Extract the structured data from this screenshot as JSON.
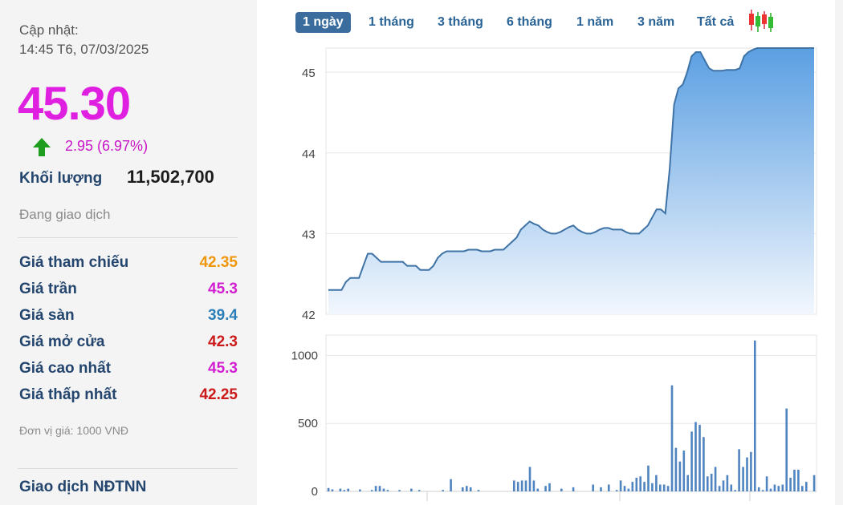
{
  "summary": {
    "update_label": "Cập nhật:",
    "update_time": "14:45 T6, 07/03/2025",
    "price": "45.30",
    "change": "2.95 (6.97%)",
    "volume_label": "Khối lượng",
    "volume_value": "11,502,700",
    "status": "Đang giao dịch"
  },
  "stats": [
    {
      "label": "Giá tham chiếu",
      "value": "42.35",
      "color": "#f0960a"
    },
    {
      "label": "Giá trần",
      "value": "45.3",
      "color": "#d21ed2"
    },
    {
      "label": "Giá sàn",
      "value": "39.4",
      "color": "#2a7fb8"
    },
    {
      "label": "Giá mở cửa",
      "value": "42.3",
      "color": "#cc1a1a"
    },
    {
      "label": "Giá cao nhất",
      "value": "45.3",
      "color": "#d21ed2"
    },
    {
      "label": "Giá thấp nhất",
      "value": "42.25",
      "color": "#cc1a1a"
    }
  ],
  "unit_note": "Đơn vị giá: 1000 VNĐ",
  "foreign_title": "Giao dịch NĐTNN",
  "tabs": [
    "1 ngày",
    "1 tháng",
    "3 tháng",
    "6 tháng",
    "1 năm",
    "3 năm",
    "Tất cả"
  ],
  "active_tab": 0,
  "colors": {
    "accent": "#3a6d9e",
    "line": "#3f73a6",
    "fill_top": "#5b9fe2",
    "fill_bottom": "#f2f7fd",
    "volume_bar": "#4f84c0",
    "price": "#e020e0"
  },
  "icons": {
    "up": "green-up-arrow-icon",
    "candlestick": "candlestick-chart-icon"
  },
  "chart_data": [
    {
      "type": "area",
      "ylim": [
        42,
        45.3
      ],
      "yticks": [
        42,
        43,
        44,
        45
      ],
      "y": [
        42.3,
        42.3,
        42.3,
        42.3,
        42.4,
        42.45,
        42.45,
        42.45,
        42.6,
        42.75,
        42.75,
        42.7,
        42.65,
        42.65,
        42.65,
        42.65,
        42.65,
        42.65,
        42.6,
        42.6,
        42.6,
        42.55,
        42.55,
        42.55,
        42.6,
        42.7,
        42.75,
        42.78,
        42.78,
        42.78,
        42.78,
        42.78,
        42.8,
        42.8,
        42.8,
        42.78,
        42.78,
        42.78,
        42.8,
        42.8,
        42.8,
        42.85,
        42.9,
        42.95,
        43.05,
        43.1,
        43.15,
        43.12,
        43.1,
        43.05,
        43.02,
        43.0,
        43.0,
        43.02,
        43.05,
        43.08,
        43.1,
        43.05,
        43.02,
        43.0,
        43.0,
        43.02,
        43.05,
        43.07,
        43.07,
        43.05,
        43.05,
        43.05,
        43.02,
        43.0,
        43.0,
        43.0,
        43.05,
        43.1,
        43.2,
        43.3,
        43.3,
        43.25,
        43.8,
        44.6,
        44.8,
        44.85,
        45.0,
        45.2,
        45.25,
        45.25,
        45.15,
        45.05,
        45.02,
        45.02,
        45.02,
        45.03,
        45.03,
        45.03,
        45.05,
        45.2,
        45.25,
        45.28,
        45.3,
        45.3,
        45.3,
        45.3,
        45.3,
        45.3,
        45.3,
        45.3,
        45.3,
        45.3,
        45.3,
        45.3,
        45.3,
        45.3
      ]
    },
    {
      "type": "bar",
      "ylim": [
        0,
        1150
      ],
      "yticks": [
        0,
        500,
        1000
      ],
      "values": [
        25,
        15,
        0,
        20,
        10,
        20,
        0,
        0,
        15,
        0,
        0,
        10,
        40,
        40,
        20,
        10,
        0,
        0,
        10,
        0,
        0,
        20,
        0,
        10,
        0,
        0,
        0,
        0,
        0,
        10,
        0,
        90,
        0,
        0,
        30,
        40,
        30,
        0,
        10,
        0,
        0,
        0,
        0,
        0,
        0,
        0,
        0,
        80,
        70,
        80,
        80,
        180,
        80,
        20,
        0,
        40,
        60,
        0,
        0,
        20,
        0,
        0,
        30,
        0,
        0,
        0,
        0,
        50,
        0,
        30,
        0,
        50,
        0,
        10,
        80,
        40,
        20,
        70,
        100,
        110,
        70,
        190,
        60,
        120,
        50,
        50,
        40,
        780,
        320,
        220,
        300,
        120,
        440,
        510,
        490,
        400,
        110,
        130,
        180,
        40,
        80,
        120,
        50,
        10,
        310,
        180,
        250,
        290,
        1110,
        30,
        10,
        110,
        20,
        50,
        40,
        50,
        610,
        100,
        160,
        160,
        40,
        70,
        0,
        120
      ]
    }
  ]
}
